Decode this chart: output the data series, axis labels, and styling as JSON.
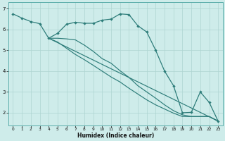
{
  "xlabel": "Humidex (Indice chaleur)",
  "background_color": "#ceecea",
  "grid_color": "#aed4d1",
  "line_color": "#2e7d7a",
  "xlim": [
    -0.5,
    23.5
  ],
  "ylim": [
    1.4,
    7.3
  ],
  "yticks": [
    2,
    3,
    4,
    5,
    6,
    7
  ],
  "xticks": [
    0,
    1,
    2,
    3,
    4,
    5,
    6,
    7,
    8,
    9,
    10,
    11,
    12,
    13,
    14,
    15,
    16,
    17,
    18,
    19,
    20,
    21,
    22,
    23
  ],
  "line1_x": [
    0,
    1,
    2,
    3,
    4,
    5,
    6,
    7,
    8,
    9,
    10,
    11,
    12,
    13,
    14,
    15,
    16,
    17,
    18,
    19,
    20,
    21,
    22,
    23
  ],
  "line1_y": [
    6.75,
    6.55,
    6.38,
    6.28,
    5.58,
    5.82,
    6.25,
    6.35,
    6.3,
    6.3,
    6.45,
    6.5,
    6.75,
    6.72,
    6.18,
    5.88,
    5.0,
    4.0,
    3.3,
    2.0,
    2.02,
    3.0,
    2.5,
    1.6
  ],
  "line2_x": [
    4,
    23
  ],
  "line2_y": [
    5.58,
    1.6
  ],
  "line3_x": [
    4,
    5,
    6,
    7,
    8,
    9,
    10,
    11,
    12,
    13,
    14,
    15,
    16,
    17,
    18,
    19,
    20,
    21,
    22,
    23
  ],
  "line3_y": [
    5.58,
    5.4,
    5.1,
    4.8,
    4.55,
    4.28,
    4.0,
    3.72,
    3.48,
    3.18,
    2.9,
    2.62,
    2.38,
    2.18,
    1.98,
    1.82,
    1.82,
    1.82,
    1.82,
    1.6
  ],
  "line4_x": [
    4,
    5,
    6,
    7,
    8,
    9,
    10,
    11,
    12,
    13,
    14,
    15,
    16,
    17,
    18,
    19,
    20,
    21,
    22,
    23
  ],
  "line4_y": [
    5.58,
    5.58,
    5.55,
    5.5,
    5.25,
    4.95,
    4.6,
    4.38,
    4.02,
    3.7,
    3.3,
    3.0,
    2.7,
    2.38,
    2.1,
    1.9,
    1.82,
    1.82,
    1.82,
    1.6
  ]
}
